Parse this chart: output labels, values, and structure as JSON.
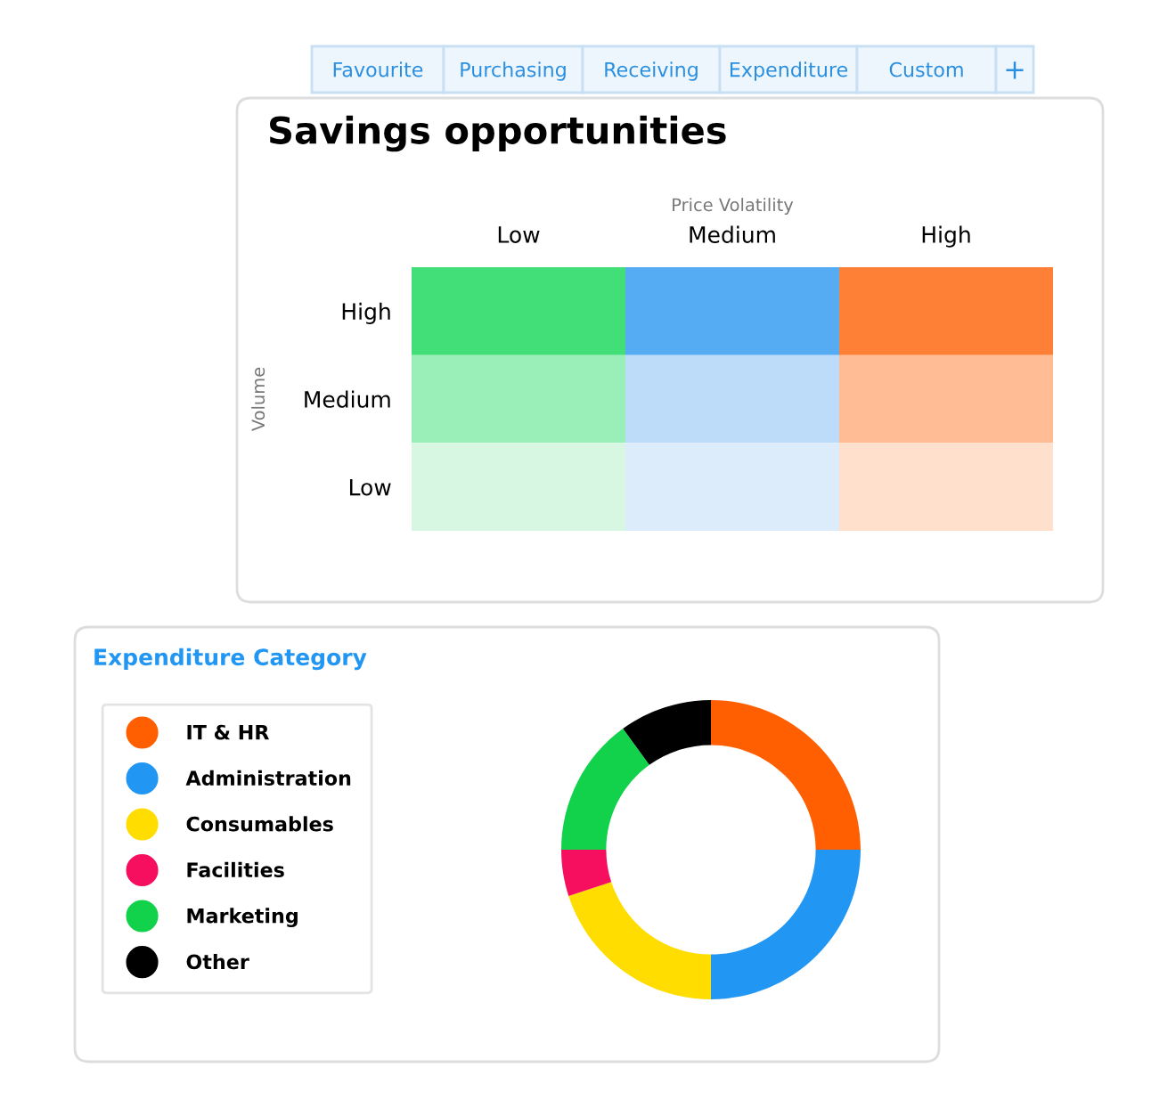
{
  "chart_data": [
    {
      "type": "other",
      "title": "Savings opportunities",
      "xlabel": "Price Volatility",
      "ylabel": "Volume",
      "categories": [
        "Low",
        "Medium",
        "High"
      ],
      "y_categories": [
        "High",
        "Medium",
        "Low"
      ],
      "colors": [
        [
          "#42de78",
          "#56acf3",
          "#fe7f36"
        ],
        [
          "#9aefb8",
          "#bcdcf9",
          "#ffbc95"
        ],
        [
          "#d8f7e3",
          "#dcecfb",
          "#ffe0cc"
        ]
      ],
      "annotations": [
        "Favourite",
        "Purchasing",
        "Receiving",
        "Expenditure",
        "Custom",
        "+"
      ]
    },
    {
      "type": "donut",
      "title": "Expenditure Category",
      "legend": "left",
      "categories": [
        "IT & HR",
        "Administration",
        "Consumables",
        "Facilities",
        "Marketing",
        "Other"
      ],
      "values": [
        25,
        25,
        20,
        5,
        15,
        10
      ],
      "colors": [
        "#ff5f00",
        "#2196f3",
        "#ffdd00",
        "#f50f5e",
        "#12d14b",
        "#000000"
      ]
    }
  ]
}
